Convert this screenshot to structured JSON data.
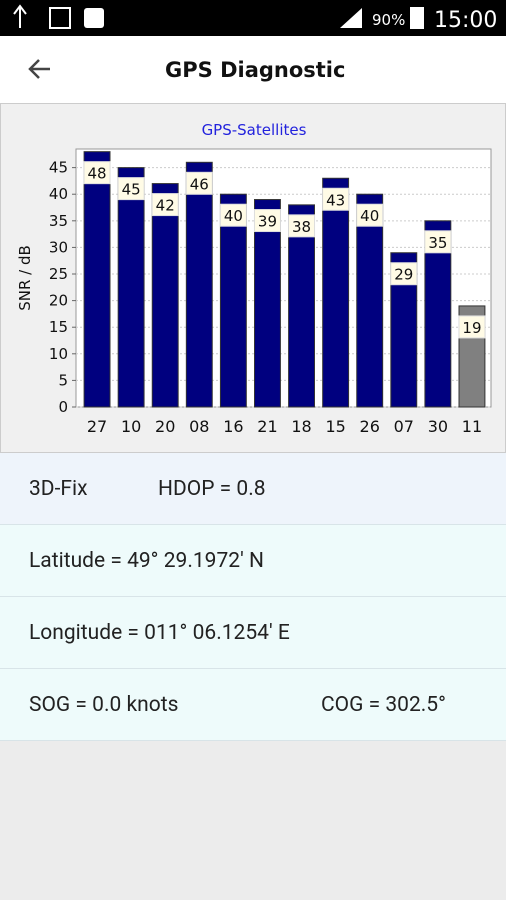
{
  "status_bar": {
    "battery": "90%",
    "time": "15:00"
  },
  "header": {
    "title": "GPS Diagnostic"
  },
  "chart_data": {
    "type": "bar",
    "title": "GPS-Satellites",
    "y_label": "SNR / dB",
    "categories": [
      "27",
      "10",
      "20",
      "08",
      "16",
      "21",
      "18",
      "15",
      "26",
      "07",
      "30",
      "11"
    ],
    "values": [
      48,
      45,
      42,
      46,
      40,
      39,
      38,
      43,
      40,
      29,
      35,
      19
    ],
    "colors": [
      "#00007f",
      "#00007f",
      "#00007f",
      "#00007f",
      "#00007f",
      "#00007f",
      "#00007f",
      "#00007f",
      "#00007f",
      "#00007f",
      "#00007f",
      "#808080"
    ],
    "ylim": [
      0,
      48.5
    ],
    "yticks": [
      0,
      5,
      10,
      15,
      20,
      25,
      30,
      35,
      40,
      45
    ],
    "grid": true
  },
  "info": {
    "fix": "3D-Fix",
    "hdop": "HDOP = 0.8",
    "latitude": "Latitude = 49° 29.1972' N",
    "longitude": "Longitude = 011° 06.1254' E",
    "sog": "SOG = 0.0 knots",
    "cog": "COG = 302.5°"
  }
}
